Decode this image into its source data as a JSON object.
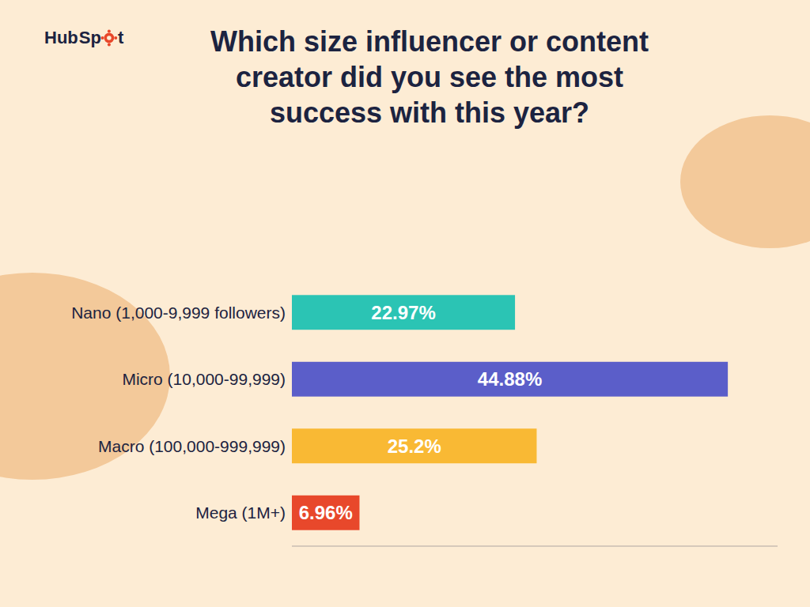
{
  "chart_data": {
    "type": "bar",
    "orientation": "horizontal",
    "title": "Which size influencer or content\ncreator did you see the most\nsuccess with this year?",
    "annotations": [
      "Hub",
      "Sp",
      "t"
    ],
    "categories": [
      "Nano (1,000-9,999 followers)",
      "Micro (10,000-99,999)",
      "Macro (100,000-999,999)",
      "Mega (1M+)"
    ],
    "values": [
      22.97,
      44.88,
      25.2,
      6.96
    ],
    "value_labels": [
      "22.97%",
      "44.88%",
      "25.2%",
      "6.96%"
    ],
    "colors": [
      "#2bc4b4",
      "#5b5ec9",
      "#f9b934",
      "#e8482b"
    ],
    "data_labels": true,
    "tick_labels": false,
    "grid": false,
    "xlim": [
      0,
      50
    ]
  }
}
